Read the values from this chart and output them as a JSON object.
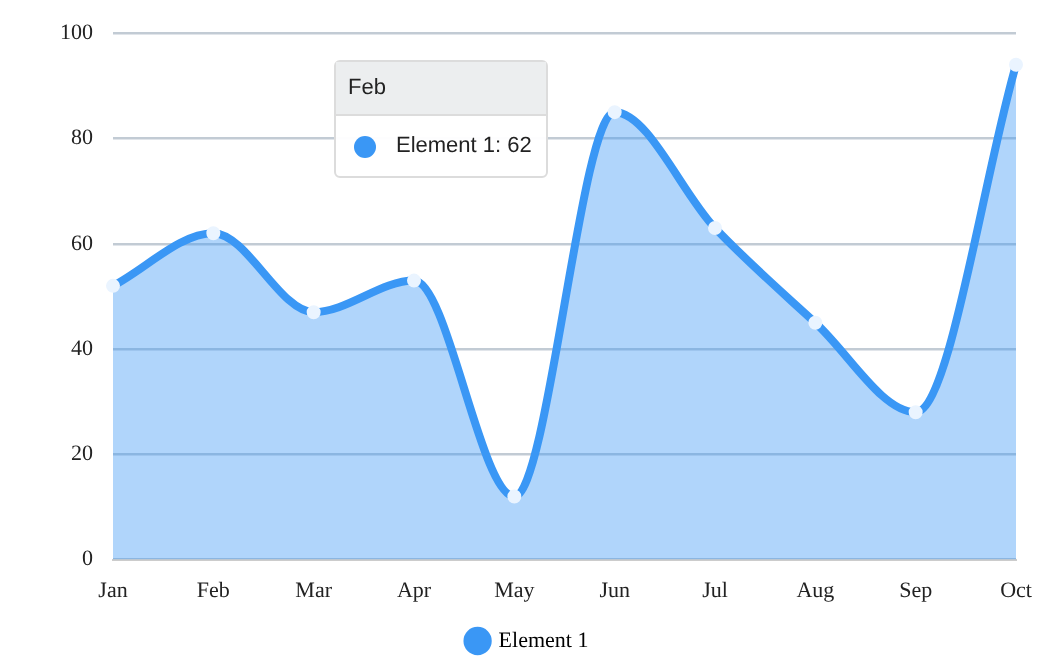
{
  "chart_data": {
    "type": "area",
    "categories": [
      "Jan",
      "Feb",
      "Mar",
      "Apr",
      "May",
      "Jun",
      "Jul",
      "Aug",
      "Sep",
      "Oct"
    ],
    "series": [
      {
        "name": "Element 1",
        "color": "#3a97f5",
        "values": [
          52,
          62,
          47,
          53,
          12,
          85,
          63,
          45,
          28,
          94
        ]
      }
    ],
    "ylim": [
      0,
      100
    ],
    "yticks": [
      0,
      20,
      40,
      60,
      80,
      100
    ],
    "grid": "y",
    "legend": "bottom",
    "marker": "circle",
    "annotations": [
      "Feb",
      "Element 1: 62"
    ]
  }
}
